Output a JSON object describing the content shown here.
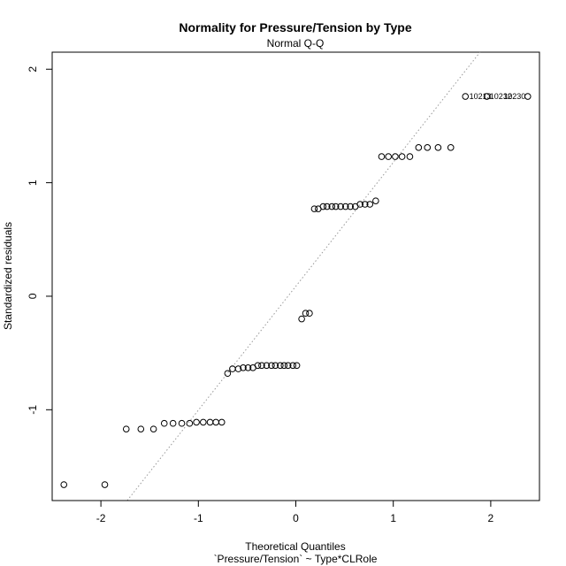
{
  "chart_data": {
    "type": "scatter",
    "title": "Normality for Pressure/Tension by Type",
    "subtitle": "Normal Q-Q",
    "xlabel": "Theoretical Quantiles",
    "xlabel_sub": "`Pressure/Tension` ~ Type*CLRole",
    "ylabel": "Standardized residuals",
    "xlim": [
      -2.5,
      2.5
    ],
    "ylim": [
      -1.8,
      2.15
    ],
    "xticks": [
      -2,
      -1,
      0,
      1,
      2
    ],
    "yticks": [
      -1,
      0,
      1,
      2
    ],
    "reference_line": {
      "style": "dotted",
      "color": "#999999",
      "through": [
        [
          -1.73,
          -1.8
        ],
        [
          1.89,
          2.15
        ]
      ]
    },
    "points": [
      {
        "x": -2.38,
        "y": -1.66
      },
      {
        "x": -1.96,
        "y": -1.66
      },
      {
        "x": -1.74,
        "y": -1.17
      },
      {
        "x": -1.59,
        "y": -1.17
      },
      {
        "x": -1.46,
        "y": -1.17
      },
      {
        "x": -1.35,
        "y": -1.12
      },
      {
        "x": -1.26,
        "y": -1.12
      },
      {
        "x": -1.17,
        "y": -1.12
      },
      {
        "x": -1.09,
        "y": -1.12
      },
      {
        "x": -1.02,
        "y": -1.11
      },
      {
        "x": -0.95,
        "y": -1.11
      },
      {
        "x": -0.88,
        "y": -1.11
      },
      {
        "x": -0.82,
        "y": -1.11
      },
      {
        "x": -0.76,
        "y": -1.11
      },
      {
        "x": -0.7,
        "y": -0.68
      },
      {
        "x": -0.65,
        "y": -0.64
      },
      {
        "x": -0.59,
        "y": -0.64
      },
      {
        "x": -0.54,
        "y": -0.63
      },
      {
        "x": -0.49,
        "y": -0.63
      },
      {
        "x": -0.44,
        "y": -0.63
      },
      {
        "x": -0.39,
        "y": -0.61
      },
      {
        "x": -0.35,
        "y": -0.61
      },
      {
        "x": -0.3,
        "y": -0.61
      },
      {
        "x": -0.25,
        "y": -0.61
      },
      {
        "x": -0.21,
        "y": -0.61
      },
      {
        "x": -0.16,
        "y": -0.61
      },
      {
        "x": -0.12,
        "y": -0.61
      },
      {
        "x": -0.08,
        "y": -0.61
      },
      {
        "x": -0.03,
        "y": -0.61
      },
      {
        "x": 0.01,
        "y": -0.61
      },
      {
        "x": 0.06,
        "y": -0.2
      },
      {
        "x": 0.1,
        "y": -0.15
      },
      {
        "x": 0.14,
        "y": -0.15
      },
      {
        "x": 0.19,
        "y": 0.77
      },
      {
        "x": 0.23,
        "y": 0.77
      },
      {
        "x": 0.28,
        "y": 0.79
      },
      {
        "x": 0.32,
        "y": 0.79
      },
      {
        "x": 0.37,
        "y": 0.79
      },
      {
        "x": 0.41,
        "y": 0.79
      },
      {
        "x": 0.46,
        "y": 0.79
      },
      {
        "x": 0.51,
        "y": 0.79
      },
      {
        "x": 0.56,
        "y": 0.79
      },
      {
        "x": 0.61,
        "y": 0.79
      },
      {
        "x": 0.66,
        "y": 0.81
      },
      {
        "x": 0.71,
        "y": 0.81
      },
      {
        "x": 0.76,
        "y": 0.81
      },
      {
        "x": 0.82,
        "y": 0.84
      },
      {
        "x": 0.88,
        "y": 1.23
      },
      {
        "x": 0.95,
        "y": 1.23
      },
      {
        "x": 1.02,
        "y": 1.23
      },
      {
        "x": 1.09,
        "y": 1.23
      },
      {
        "x": 1.17,
        "y": 1.23
      },
      {
        "x": 1.26,
        "y": 1.31
      },
      {
        "x": 1.35,
        "y": 1.31
      },
      {
        "x": 1.46,
        "y": 1.31
      },
      {
        "x": 1.59,
        "y": 1.31
      },
      {
        "x": 1.74,
        "y": 1.76
      },
      {
        "x": 1.96,
        "y": 1.76
      },
      {
        "x": 2.38,
        "y": 1.76
      }
    ],
    "point_labels": [
      {
        "text": "10213",
        "x": 1.78,
        "y": 1.76
      },
      {
        "text": "10232",
        "x": 1.99,
        "y": 1.76
      },
      {
        "text": "10230",
        "x": 2.13,
        "y": 1.76
      }
    ]
  }
}
